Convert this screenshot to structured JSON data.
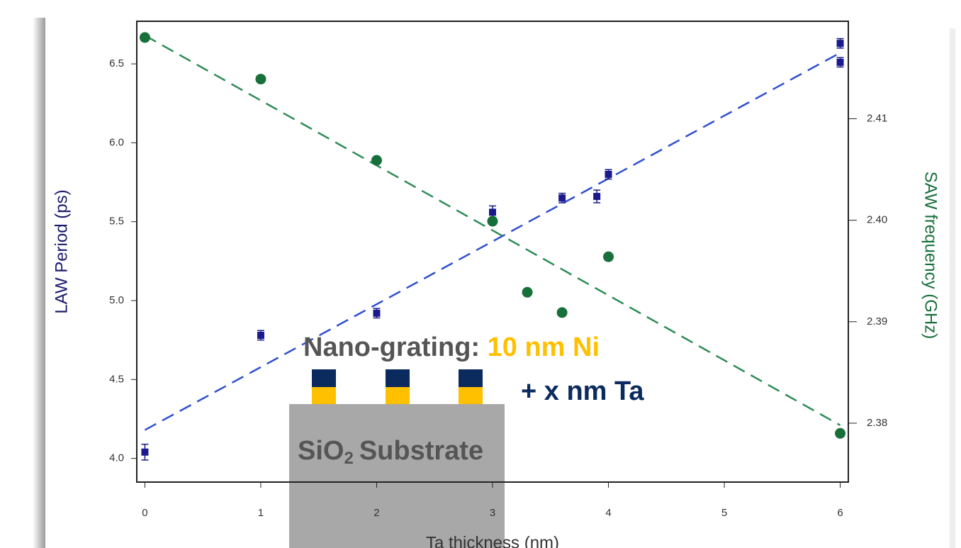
{
  "chart_data": {
    "type": "scatter",
    "xlabel": "Ta thickness (nm)",
    "ylabel": "LAW Period (ps)",
    "y2label": "SAW frequency (GHz)",
    "xlim": [
      -0.07,
      6.07
    ],
    "ylim": [
      3.85,
      6.77
    ],
    "y2lim": [
      2.3742,
      2.4196
    ],
    "xticks": [
      0,
      1,
      2,
      3,
      4,
      5,
      6
    ],
    "yticks": [
      {
        "value": 4,
        "label": "4.0"
      },
      4.5,
      {
        "value": 5,
        "label": "5.0"
      },
      5.5,
      {
        "value": 6,
        "label": "6.0"
      },
      6.5
    ],
    "y2ticks": [
      2.38,
      2.39,
      {
        "value": 2.4,
        "label": "2.40"
      },
      2.41
    ],
    "series": [
      {
        "color": "#1a1a8c",
        "marker": "square",
        "x": [
          0,
          1,
          2,
          3,
          3.6,
          3.9,
          4,
          6,
          6
        ],
        "values": [
          4.04,
          4.78,
          4.92,
          5.56,
          5.65,
          5.66,
          5.8,
          6.63,
          6.51
        ],
        "errors": [
          0.05,
          0.03,
          0.03,
          0.04,
          0.03,
          0.04,
          0.03,
          0.03,
          0.03
        ]
      },
      {
        "color": "#17703a",
        "marker": "circle",
        "axis": "y2",
        "x": [
          0,
          1,
          2,
          3,
          3.3,
          3.6,
          4,
          6
        ],
        "values": [
          2.418,
          2.4139,
          2.4059,
          2.3999,
          2.3929,
          2.3909,
          2.3964,
          2.379
        ]
      }
    ],
    "fits": [
      {
        "color": "#2f4fd0",
        "x": [
          0,
          6
        ],
        "values": [
          4.18,
          6.57
        ]
      },
      {
        "color": "#2e8b57",
        "axis": "y2",
        "x": [
          0,
          6
        ],
        "values": [
          2.4182,
          2.3798
        ]
      }
    ]
  },
  "inset": {
    "grating_label": "Nano-grating:",
    "ni_label": "10 nm Ni",
    "ta_label": "+ x nm Ta",
    "substrate_prefix": "SiO",
    "substrate_subscript": "2",
    "substrate_suffix": "Substrate"
  }
}
